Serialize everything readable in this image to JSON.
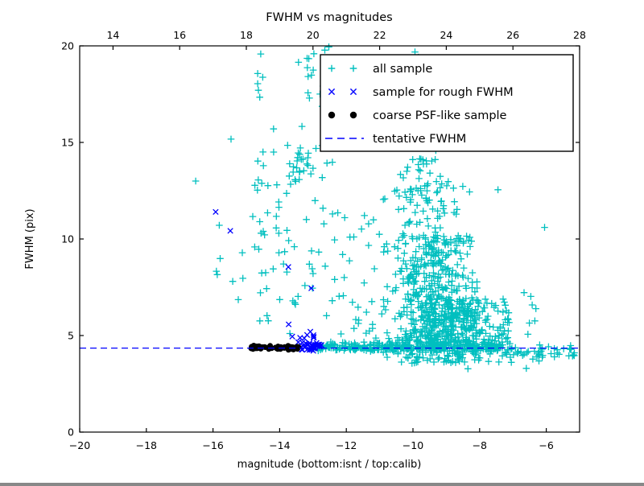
{
  "figure": {
    "background": "#ffffff"
  },
  "chart_data": {
    "type": "scatter",
    "title": "FWHM vs magnitudes",
    "xlabel": "magnitude (bottom:isnt / top:calib)",
    "ylabel": "FWHM (pix)",
    "xlim": [
      -20,
      -5
    ],
    "ylim": [
      0,
      20
    ],
    "xticks": [
      -20,
      -18,
      -16,
      -14,
      -12,
      -10,
      -8,
      -6
    ],
    "yticks": [
      0,
      5,
      10,
      15,
      20
    ],
    "top_axis": {
      "lim": [
        13,
        28
      ],
      "ticks": [
        14,
        16,
        18,
        20,
        22,
        24,
        26,
        28
      ]
    },
    "grid": false,
    "tentative_fwhm_line": {
      "label": "tentative FWHM",
      "y": 4.35,
      "color": "#0000ff",
      "style": "dashed"
    },
    "legend": {
      "position": "upper right",
      "entries": [
        {
          "label": "all sample",
          "marker": "plus",
          "color": "#00bfbf"
        },
        {
          "label": "sample for rough FWHM",
          "marker": "x",
          "color": "#0000ff"
        },
        {
          "label": "coarse PSF-like sample",
          "marker": "dot",
          "color": "#000000"
        },
        {
          "label": "tentative FWHM",
          "marker": "dashed-line",
          "color": "#0000ff"
        }
      ]
    },
    "series": [
      {
        "name": "all sample",
        "marker": "plus",
        "color": "#00bfbf",
        "seed": 42,
        "clusters": [
          {
            "count": 8,
            "mag": {
              "dist": "uniform",
              "min": -16.1,
              "max": -14.95
            },
            "fwhm": {
              "dist": "uniform",
              "min": 4.8,
              "max": 11.5
            }
          },
          {
            "count": 13,
            "mag": {
              "dist": "normal",
              "mean": -14.6,
              "sd": 0.1,
              "min": -14.8,
              "max": -14.4
            },
            "fwhm": {
              "dist": "uniform",
              "min": 12.5,
              "max": 20.0
            }
          },
          {
            "count": 12,
            "mag": {
              "dist": "normal",
              "mean": -14.55,
              "sd": 0.14,
              "min": -14.85,
              "max": -14.3
            },
            "fwhm": {
              "dist": "uniform",
              "min": 5.0,
              "max": 12.5
            }
          },
          {
            "count": 55,
            "mag": {
              "dist": "uniform",
              "min": -14.45,
              "max": -12.4
            },
            "fwhm": {
              "dist": "uniform",
              "min": 5.0,
              "max": 16.0
            }
          },
          {
            "count": 20,
            "mag": {
              "dist": "normal",
              "mean": -13.35,
              "sd": 0.22,
              "min": -13.8,
              "max": -12.9
            },
            "fwhm": {
              "dist": "uniform",
              "min": 12.8,
              "max": 14.8
            }
          },
          {
            "count": 16,
            "mag": {
              "dist": "normal",
              "mean": -12.9,
              "sd": 0.35,
              "min": -13.6,
              "max": -12.2
            },
            "fwhm": {
              "dist": "uniform",
              "min": 16.6,
              "max": 20.0
            }
          },
          {
            "count": 30,
            "mag": {
              "dist": "normal",
              "mean": -9.7,
              "sd": 0.35,
              "min": -10.5,
              "max": -9.0
            },
            "fwhm": {
              "dist": "uniform",
              "min": 13.5,
              "max": 20.0
            }
          },
          {
            "count": 90,
            "mag": {
              "dist": "normal",
              "mean": -9.6,
              "sd": 0.55,
              "min": -11.2,
              "max": -8.2
            },
            "fwhm": {
              "dist": "uniform",
              "min": 10.0,
              "max": 14.2
            }
          },
          {
            "count": 240,
            "mag": {
              "dist": "normal",
              "mean": -9.45,
              "sd": 0.62,
              "min": -11.3,
              "max": -7.8
            },
            "fwhm": {
              "dist": "uniform",
              "min": 6.8,
              "max": 10.2
            }
          },
          {
            "count": 420,
            "mag": {
              "dist": "normal",
              "mean": -9.0,
              "sd": 0.85,
              "min": -11.5,
              "max": -7.0
            },
            "fwhm": {
              "dist": "uniform",
              "min": 4.55,
              "max": 6.9
            }
          },
          {
            "count": 330,
            "mag": {
              "dist": "uniform",
              "min": -12.85,
              "max": -7.3
            },
            "fwhm": {
              "dist": "normal",
              "mean": 4.42,
              "sd": 0.12,
              "min": 4.1,
              "max": 4.75
            }
          },
          {
            "count": 85,
            "mag": {
              "dist": "normal",
              "mean": -8.8,
              "sd": 1.1,
              "min": -10.8,
              "max": -5.3
            },
            "fwhm": {
              "dist": "uniform",
              "min": 3.55,
              "max": 4.3
            }
          },
          {
            "count": 40,
            "mag": {
              "dist": "uniform",
              "min": -7.3,
              "max": -5.1
            },
            "fwhm": {
              "dist": "normal",
              "mean": 4.15,
              "sd": 0.22,
              "min": 3.7,
              "max": 4.6
            }
          },
          {
            "count": 30,
            "mag": {
              "dist": "uniform",
              "min": -12.4,
              "max": -11.15
            },
            "fwhm": {
              "dist": "uniform",
              "min": 5.0,
              "max": 11.5
            }
          },
          {
            "count": 12,
            "mag": {
              "dist": "uniform",
              "min": -7.5,
              "max": -6.3
            },
            "fwhm": {
              "dist": "uniform",
              "min": 4.8,
              "max": 7.6
            }
          }
        ],
        "points": [
          [
            -16.52,
            13.0
          ],
          [
            -15.46,
            15.17
          ],
          [
            -7.45,
            12.55
          ],
          [
            -6.05,
            10.6
          ],
          [
            -5.3,
            4.32
          ],
          [
            -5.18,
            4.0
          ],
          [
            -8.35,
            3.28
          ],
          [
            -6.6,
            3.3
          ]
        ]
      },
      {
        "name": "sample for rough FWHM",
        "marker": "x",
        "color": "#0000ff",
        "seed": 7,
        "clusters": [
          {
            "count": 48,
            "mag": {
              "dist": "uniform",
              "min": -13.45,
              "max": -12.72
            },
            "fwhm": {
              "dist": "normal",
              "mean": 4.42,
              "sd": 0.1,
              "min": 4.2,
              "max": 4.68
            }
          },
          {
            "count": 6,
            "mag": {
              "dist": "uniform",
              "min": -13.5,
              "max": -12.85
            },
            "fwhm": {
              "dist": "uniform",
              "min": 4.7,
              "max": 5.15
            }
          }
        ],
        "points": [
          [
            -15.92,
            11.4
          ],
          [
            -15.48,
            10.42
          ],
          [
            -13.74,
            8.55
          ],
          [
            -13.05,
            7.45
          ],
          [
            -13.73,
            5.58
          ],
          [
            -13.08,
            5.2
          ],
          [
            -13.62,
            4.95
          ]
        ]
      },
      {
        "name": "coarse PSF-like sample",
        "marker": "dot",
        "color": "#000000",
        "seed": 13,
        "clusters": [
          {
            "count": 70,
            "mag": {
              "dist": "uniform",
              "min": -14.87,
              "max": -13.42
            },
            "fwhm": {
              "dist": "normal",
              "mean": 4.37,
              "sd": 0.055,
              "min": 4.25,
              "max": 4.5
            }
          }
        ],
        "points": []
      }
    ]
  }
}
